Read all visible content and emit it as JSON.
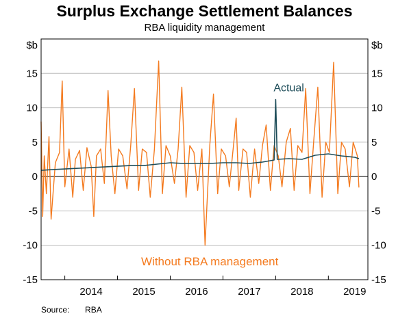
{
  "title": "Surplus Exchange Settlement Balances",
  "subtitle": "RBA liquidity management",
  "source_label": "Source:",
  "source_value": "RBA",
  "colors": {
    "actual": "#1f4e5a",
    "without": "#f47b20",
    "axis": "#000000",
    "grid": "#bcbcbc",
    "zero": "#000000"
  },
  "chart_data": {
    "type": "line",
    "title": "Surplus Exchange Settlement Balances",
    "subtitle": "RBA liquidity management",
    "ylabel_left": "$b",
    "ylabel_right": "$b",
    "ylim": [
      -15,
      20
    ],
    "yticks": [
      -15,
      -10,
      -5,
      0,
      5,
      10,
      15
    ],
    "xlim": [
      2013.55,
      2019.75
    ],
    "xticks_labels": [
      "2014",
      "2015",
      "2016",
      "2017",
      "2018",
      "2019"
    ],
    "xtick_positions": [
      2014.5,
      2015.5,
      2016.5,
      2017.5,
      2018.5,
      2019.5
    ],
    "grid": true,
    "annotations": [
      {
        "text": "Actual",
        "series": "Actual",
        "x": 2018.25,
        "y": 12.9
      },
      {
        "text": "Without RBA management",
        "series": "Without RBA management",
        "x": 2016.75,
        "y": -12.4
      }
    ],
    "series": [
      {
        "name": "Actual",
        "x": [
          2013.55,
          2013.75,
          2014.0,
          2014.25,
          2014.5,
          2014.75,
          2015.0,
          2015.25,
          2015.5,
          2015.75,
          2016.0,
          2016.25,
          2016.5,
          2016.75,
          2017.0,
          2017.25,
          2017.5,
          2017.75,
          2017.97,
          2018.0,
          2018.03,
          2018.25,
          2018.5,
          2018.75,
          2019.0,
          2019.25,
          2019.5,
          2019.58
        ],
        "y": [
          0.9,
          1.0,
          1.1,
          1.2,
          1.3,
          1.4,
          1.5,
          1.6,
          1.6,
          1.8,
          2.0,
          1.9,
          1.9,
          1.9,
          2.0,
          2.0,
          1.9,
          2.1,
          2.4,
          11.2,
          2.5,
          2.6,
          2.5,
          3.1,
          3.3,
          3.0,
          2.8,
          2.6
        ]
      },
      {
        "name": "Without RBA management",
        "x": [
          2013.55,
          2013.58,
          2013.61,
          2013.65,
          2013.7,
          2013.74,
          2013.82,
          2013.9,
          2013.95,
          2014.0,
          2014.08,
          2014.15,
          2014.2,
          2014.28,
          2014.35,
          2014.42,
          2014.5,
          2014.55,
          2014.6,
          2014.68,
          2014.75,
          2014.82,
          2014.88,
          2014.95,
          2015.02,
          2015.1,
          2015.18,
          2015.25,
          2015.32,
          2015.4,
          2015.47,
          2015.55,
          2015.62,
          2015.7,
          2015.78,
          2015.85,
          2015.92,
          2016.0,
          2016.08,
          2016.15,
          2016.22,
          2016.3,
          2016.37,
          2016.45,
          2016.52,
          2016.6,
          2016.66,
          2016.75,
          2016.82,
          2016.9,
          2016.97,
          2017.05,
          2017.12,
          2017.2,
          2017.25,
          2017.3,
          2017.38,
          2017.45,
          2017.52,
          2017.6,
          2017.68,
          2017.75,
          2017.82,
          2017.9,
          2017.97,
          2018.05,
          2018.12,
          2018.2,
          2018.28,
          2018.35,
          2018.42,
          2018.5,
          2018.57,
          2018.65,
          2018.72,
          2018.8,
          2018.88,
          2018.95,
          2019.02,
          2019.1,
          2019.18,
          2019.25,
          2019.32,
          2019.4,
          2019.47,
          2019.55,
          2019.58
        ],
        "y": [
          8.0,
          -5.8,
          3.0,
          -2.5,
          5.8,
          -6.2,
          2.0,
          3.5,
          13.9,
          -1.5,
          4.0,
          -3.0,
          2.5,
          3.8,
          -2.0,
          4.2,
          1.5,
          -5.8,
          3.0,
          4.0,
          -1.0,
          12.5,
          3.0,
          -2.5,
          4.0,
          3.0,
          -1.8,
          4.5,
          12.8,
          -2.0,
          4.0,
          3.5,
          -3.0,
          4.0,
          16.8,
          -2.5,
          4.5,
          3.0,
          -1.0,
          4.0,
          13.0,
          -3.0,
          4.5,
          3.5,
          -2.0,
          4.0,
          -10.0,
          4.5,
          12.0,
          -2.5,
          4.0,
          3.0,
          -1.5,
          4.5,
          8.5,
          -2.0,
          4.0,
          3.5,
          -3.0,
          4.0,
          -1.0,
          4.5,
          7.5,
          -2.0,
          4.5,
          3.0,
          -1.5,
          5.0,
          7.0,
          -2.0,
          4.5,
          3.5,
          12.8,
          -2.5,
          5.0,
          13.0,
          -3.0,
          5.0,
          3.5,
          16.6,
          -2.5,
          5.0,
          4.0,
          -1.5,
          5.0,
          3.0,
          -1.6
        ]
      }
    ]
  }
}
